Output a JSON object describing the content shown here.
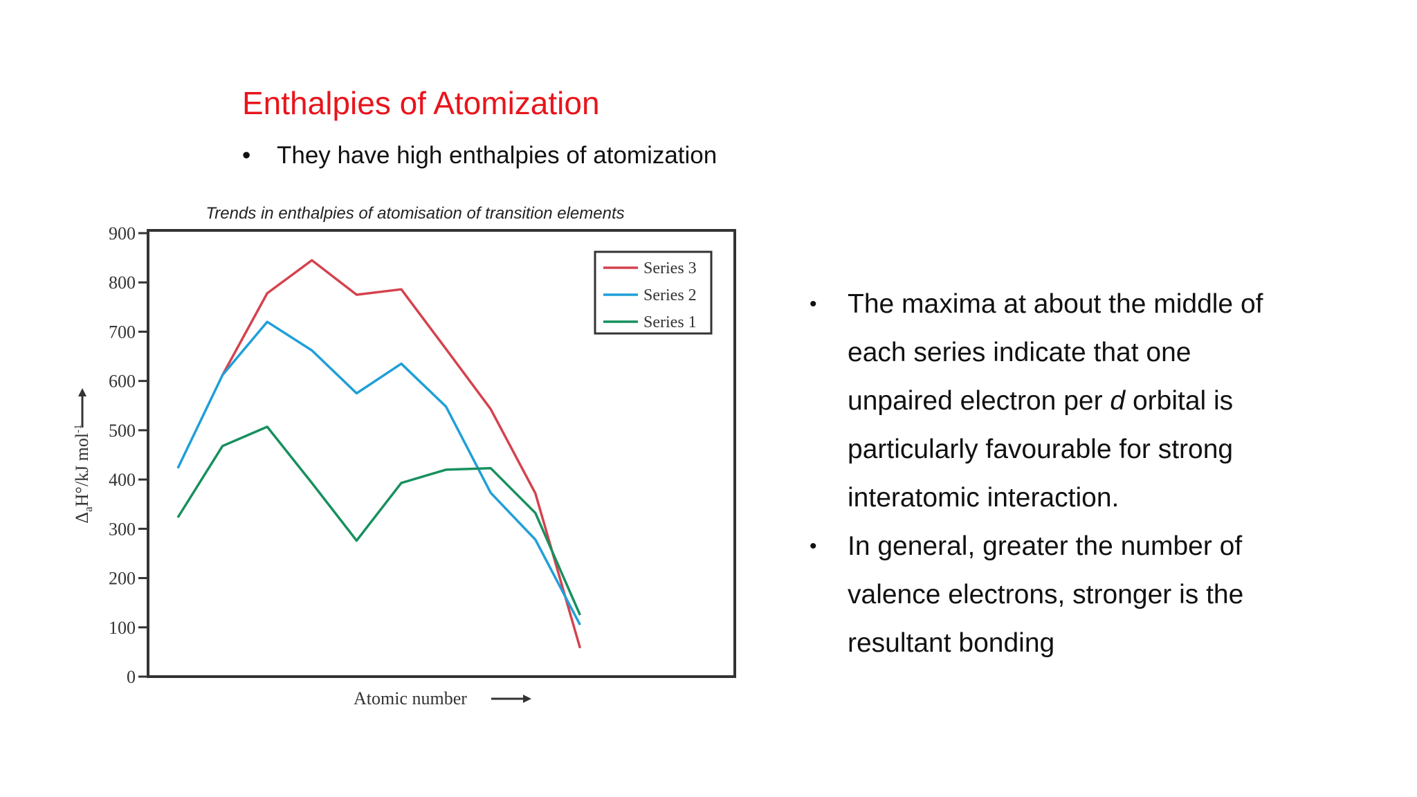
{
  "slide": {
    "title": "Enthalpies of Atomization",
    "top_bullet": "They have high enthalpies of atomization",
    "right_bullets": [
      {
        "lines": [
          "The maxima at about the middle of",
          "each series indicate that one"
        ],
        "line3_pre": "unpaired electron per ",
        "line3_italic": "d",
        "line3_post": " orbital is",
        "lines_after": [
          "particularly favourable for strong",
          "interatomic interaction."
        ]
      },
      {
        "lines": [
          "In general, greater the number of",
          "valence electrons, stronger is the",
          "resultant bonding"
        ]
      }
    ]
  },
  "chart_data": {
    "type": "line",
    "title": "Trends in enthalpies of atomisation of transition elements",
    "xlabel": "Atomic number",
    "ylabel": "ΔaH°/kJ mol⁻¹",
    "ylabel_main": "Δ",
    "ylabel_sub": "a",
    "ylabel_rest": "H°/kJ mol",
    "ylabel_sup": "-1",
    "ylim": [
      0,
      900
    ],
    "yticks": [
      "0",
      "100",
      "200",
      "300",
      "400",
      "500",
      "600",
      "700",
      "800",
      "900"
    ],
    "x": [
      1,
      2,
      3,
      4,
      5,
      6,
      7,
      8,
      9,
      10
    ],
    "legend_position": "top-right",
    "grid": false,
    "series": [
      {
        "name": "Series 3",
        "color": "#d4424e",
        "values": [
          null,
          612,
          778,
          845,
          775,
          786,
          665,
          543,
          372,
          58
        ]
      },
      {
        "name": "Series 2",
        "color": "#1f9fd8",
        "values": [
          423,
          612,
          720,
          662,
          575,
          635,
          548,
          373,
          278,
          105
        ]
      },
      {
        "name": "Series 1",
        "color": "#17905e",
        "values": [
          323,
          468,
          507,
          393,
          276,
          393,
          420,
          423,
          332,
          125
        ]
      }
    ]
  }
}
